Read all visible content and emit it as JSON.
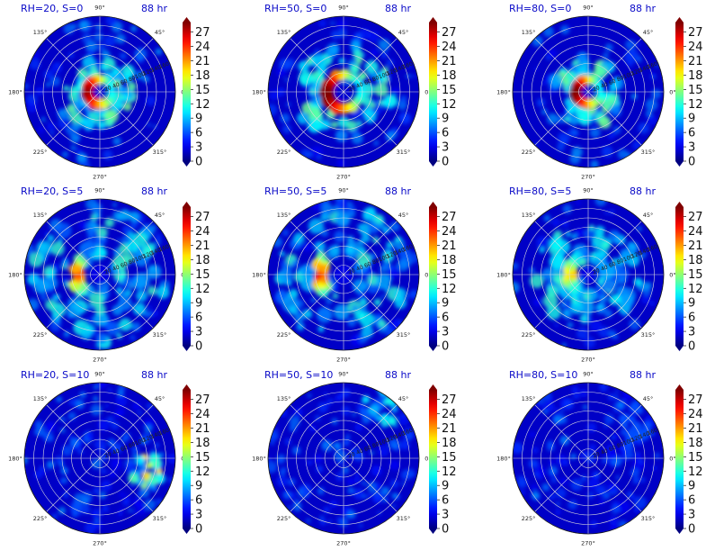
{
  "chart_data": {
    "type": "polar-heatmap",
    "colormap": "jet",
    "angle_ticks": [
      "0°",
      "45°",
      "90°",
      "135°",
      "180°",
      "225°",
      "270°",
      "315°"
    ],
    "radial_ticks": [
      "20",
      "40",
      "60",
      "80",
      "100",
      "120",
      "140",
      "160"
    ],
    "colorbar": {
      "ticks": [
        "0",
        "3",
        "6",
        "9",
        "12",
        "15",
        "18",
        "21",
        "24",
        "27"
      ],
      "min": 0,
      "max": 29
    },
    "panels": [
      {
        "title": "RH=20, S=0",
        "time": "88 hr",
        "pattern": "ring",
        "peak": 28,
        "radius_of_max": 25
      },
      {
        "title": "RH=50, S=0",
        "time": "88 hr",
        "pattern": "ring",
        "peak": 29,
        "radius_of_max": 35
      },
      {
        "title": "RH=80, S=0",
        "time": "88 hr",
        "pattern": "ring",
        "peak": 29,
        "radius_of_max": 25
      },
      {
        "title": "RH=20, S=5",
        "time": "88 hr",
        "pattern": "crescent",
        "peak": 24,
        "radius_of_max": 45
      },
      {
        "title": "RH=50, S=5",
        "time": "88 hr",
        "pattern": "crescent",
        "peak": 26,
        "radius_of_max": 45
      },
      {
        "title": "RH=80, S=5",
        "time": "88 hr",
        "pattern": "crescent",
        "peak": 20,
        "radius_of_max": 35
      },
      {
        "title": "RH=20, S=10",
        "time": "88 hr",
        "pattern": "patchy",
        "peak": 20,
        "radius_of_max": 110
      },
      {
        "title": "RH=50, S=10",
        "time": "88 hr",
        "pattern": "patchy",
        "peak": 12,
        "radius_of_max": 140
      },
      {
        "title": "RH=80, S=10",
        "time": "88 hr",
        "pattern": "patchy",
        "peak": 6,
        "radius_of_max": 120
      }
    ]
  }
}
